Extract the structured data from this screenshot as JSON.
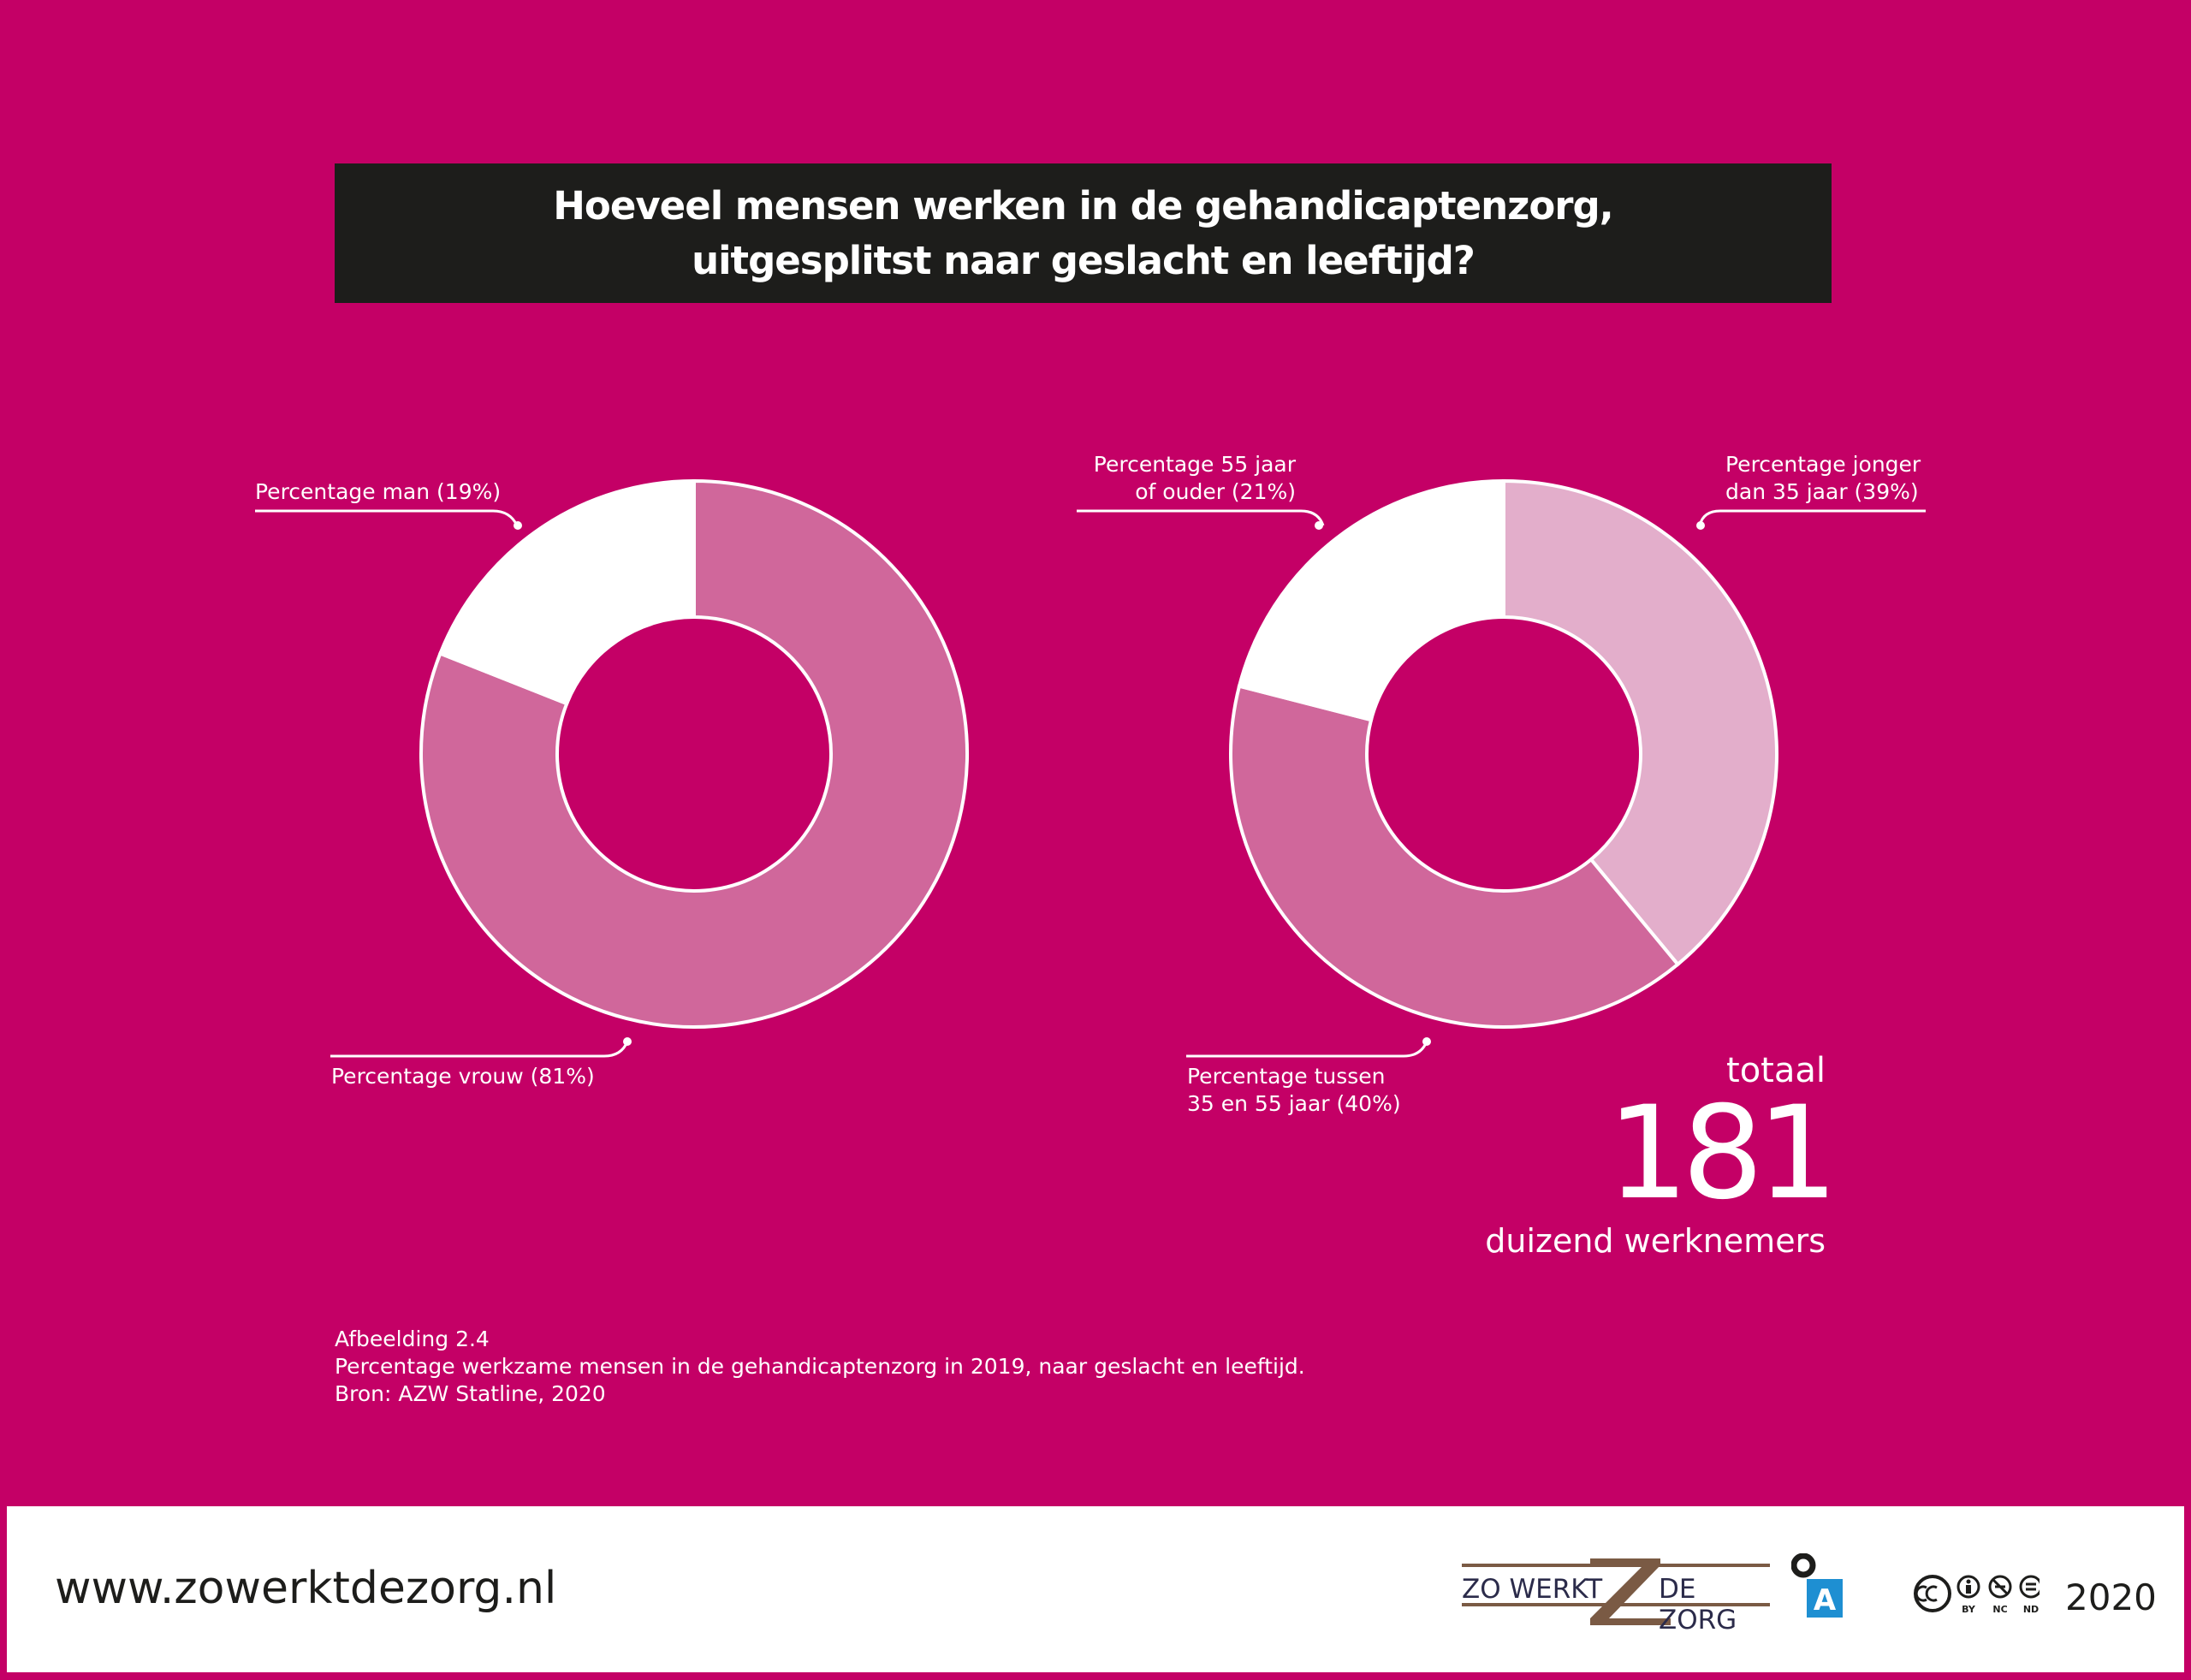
{
  "title": {
    "line1": "Hoeveel mensen werken in de gehandicaptenzorg,",
    "line2": "uitgesplitst naar geslacht en leeftijd?"
  },
  "colors": {
    "background": "#c40066",
    "slice_light": "#e3aecb",
    "slice_mid": "#d0679b",
    "slice_white": "#ffffff",
    "title_bar": "#1d1d1b"
  },
  "chart_data": [
    {
      "type": "pie",
      "variant": "donut",
      "labels": [
        "Percentage vrouw (81%)",
        "Percentage man (19%)"
      ],
      "values": [
        81,
        19
      ],
      "colors": [
        "#d0679b",
        "#ffffff"
      ]
    },
    {
      "type": "pie",
      "variant": "donut",
      "labels": [
        "Percentage jonger dan 35 jaar (39%)",
        "Percentage tussen 35 en 55 jaar (40%)",
        "Percentage 55 jaar of ouder (21%)"
      ],
      "values": [
        39,
        40,
        21
      ],
      "colors": [
        "#e3aecb",
        "#d0679b",
        "#ffffff"
      ]
    }
  ],
  "labels": {
    "man": "Percentage man (19%)",
    "vrouw": "Percentage vrouw (81%)",
    "ouder_l1": "Percentage 55 jaar",
    "ouder_l2": "of ouder (21%)",
    "jonger_l1": "Percentage jonger",
    "jonger_l2": "dan 35 jaar (39%)",
    "tussen_l1": "Percentage tussen",
    "tussen_l2": "35 en 55 jaar (40%)"
  },
  "total": {
    "word": "totaal",
    "number": "181",
    "unit": "duizend werknemers"
  },
  "caption": {
    "line1": "Afbeelding 2.4",
    "line2": "Percentage werkzame mensen in de gehandicaptenzorg in 2019, naar geslacht en leeftijd.",
    "line3": "Bron: AZW Statline, 2020"
  },
  "footer": {
    "url": "www.zowerktdezorg.nl",
    "logo_left": "ZO WERKT",
    "logo_right": "DE ZORG",
    "logo_a": "A",
    "cc_by": "BY",
    "cc_nc": "NC",
    "cc_nd": "ND",
    "year": "2020"
  }
}
